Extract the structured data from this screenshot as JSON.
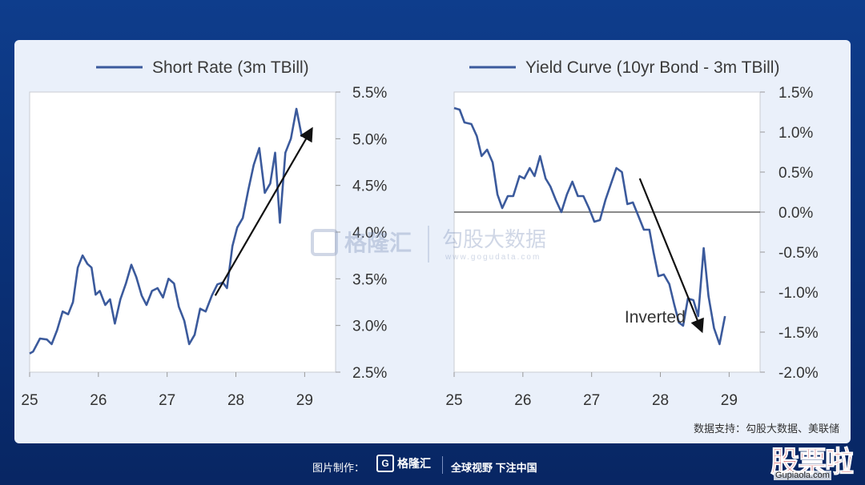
{
  "source_note": "数据支持：勾股大数据、美联储",
  "watermark": {
    "left": "格隆汇",
    "right": "勾股大数据",
    "right_url": "www.gogudata.com"
  },
  "footer": {
    "made_by": "图片制作：",
    "brand": "格隆汇",
    "slogan": "全球视野 下注中国"
  },
  "corner": {
    "big": "股票啦",
    "url": "Gupiaola.com"
  },
  "colors": {
    "series": "#3b5a9c",
    "background": "#0b2f76",
    "panel": "#eaf0fa"
  },
  "chart_data": [
    {
      "type": "line",
      "title": "",
      "xlabel": "",
      "ylabel": "",
      "ylim": [
        2.5,
        5.5
      ],
      "xlim": [
        25,
        29.45
      ],
      "x_ticks": [
        "25",
        "26",
        "27",
        "28",
        "29"
      ],
      "y_ticks": [
        "5.5%",
        "5.0%",
        "4.5%",
        "4.0%",
        "3.5%",
        "3.0%",
        "2.5%"
      ],
      "legend": "top-left",
      "series": [
        {
          "name": "Short Rate (3m TBill)",
          "values": [
            [
              25.0,
              2.7
            ],
            [
              25.05,
              2.72
            ],
            [
              25.15,
              2.86
            ],
            [
              25.25,
              2.85
            ],
            [
              25.32,
              2.8
            ],
            [
              25.4,
              2.95
            ],
            [
              25.48,
              3.15
            ],
            [
              25.56,
              3.12
            ],
            [
              25.63,
              3.25
            ],
            [
              25.7,
              3.62
            ],
            [
              25.77,
              3.75
            ],
            [
              25.84,
              3.66
            ],
            [
              25.9,
              3.62
            ],
            [
              25.96,
              3.33
            ],
            [
              26.02,
              3.37
            ],
            [
              26.1,
              3.22
            ],
            [
              26.17,
              3.28
            ],
            [
              26.24,
              3.02
            ],
            [
              26.32,
              3.28
            ],
            [
              26.4,
              3.45
            ],
            [
              26.48,
              3.65
            ],
            [
              26.55,
              3.52
            ],
            [
              26.63,
              3.32
            ],
            [
              26.7,
              3.22
            ],
            [
              26.78,
              3.37
            ],
            [
              26.86,
              3.4
            ],
            [
              26.94,
              3.3
            ],
            [
              27.02,
              3.5
            ],
            [
              27.1,
              3.45
            ],
            [
              27.17,
              3.2
            ],
            [
              27.25,
              3.05
            ],
            [
              27.32,
              2.8
            ],
            [
              27.4,
              2.9
            ],
            [
              27.48,
              3.18
            ],
            [
              27.56,
              3.15
            ],
            [
              27.65,
              3.32
            ],
            [
              27.73,
              3.44
            ],
            [
              27.81,
              3.46
            ],
            [
              27.87,
              3.4
            ],
            [
              27.95,
              3.85
            ],
            [
              28.02,
              4.05
            ],
            [
              28.1,
              4.15
            ],
            [
              28.18,
              4.45
            ],
            [
              28.26,
              4.72
            ],
            [
              28.34,
              4.9
            ],
            [
              28.42,
              4.42
            ],
            [
              28.5,
              4.52
            ],
            [
              28.57,
              4.85
            ],
            [
              28.64,
              4.1
            ],
            [
              28.72,
              4.85
            ],
            [
              28.8,
              5.0
            ],
            [
              28.88,
              5.32
            ],
            [
              28.96,
              5.02
            ]
          ]
        }
      ],
      "annotations": [
        {
          "type": "arrow",
          "from": [
            27.7,
            3.32
          ],
          "to": [
            29.1,
            5.1
          ]
        }
      ]
    },
    {
      "type": "line",
      "title": "",
      "xlabel": "",
      "ylabel": "",
      "ylim": [
        -2.0,
        1.5
      ],
      "xlim": [
        25,
        29.45
      ],
      "x_ticks": [
        "25",
        "26",
        "27",
        "28",
        "29"
      ],
      "y_ticks": [
        "1.5%",
        "1.0%",
        "0.5%",
        "0.0%",
        "-0.5%",
        "-1.0%",
        "-1.5%",
        "-2.0%"
      ],
      "legend": "top-left",
      "zero_line": true,
      "series": [
        {
          "name": "Yield Curve (10yr Bond - 3m TBill)",
          "values": [
            [
              25.0,
              1.3
            ],
            [
              25.08,
              1.28
            ],
            [
              25.15,
              1.12
            ],
            [
              25.25,
              1.1
            ],
            [
              25.33,
              0.95
            ],
            [
              25.4,
              0.7
            ],
            [
              25.48,
              0.78
            ],
            [
              25.56,
              0.62
            ],
            [
              25.63,
              0.22
            ],
            [
              25.7,
              0.05
            ],
            [
              25.78,
              0.2
            ],
            [
              25.86,
              0.2
            ],
            [
              25.95,
              0.45
            ],
            [
              26.02,
              0.42
            ],
            [
              26.1,
              0.55
            ],
            [
              26.17,
              0.45
            ],
            [
              26.25,
              0.7
            ],
            [
              26.33,
              0.42
            ],
            [
              26.4,
              0.32
            ],
            [
              26.48,
              0.15
            ],
            [
              26.56,
              0.0
            ],
            [
              26.64,
              0.22
            ],
            [
              26.72,
              0.38
            ],
            [
              26.8,
              0.2
            ],
            [
              26.88,
              0.2
            ],
            [
              26.96,
              0.05
            ],
            [
              27.04,
              -0.12
            ],
            [
              27.12,
              -0.1
            ],
            [
              27.2,
              0.15
            ],
            [
              27.28,
              0.35
            ],
            [
              27.36,
              0.55
            ],
            [
              27.44,
              0.5
            ],
            [
              27.52,
              0.1
            ],
            [
              27.6,
              0.12
            ],
            [
              27.68,
              -0.05
            ],
            [
              27.76,
              -0.22
            ],
            [
              27.84,
              -0.22
            ],
            [
              27.9,
              -0.5
            ],
            [
              27.97,
              -0.8
            ],
            [
              28.05,
              -0.78
            ],
            [
              28.13,
              -0.9
            ],
            [
              28.2,
              -1.15
            ],
            [
              28.27,
              -1.38
            ],
            [
              28.33,
              -1.42
            ],
            [
              28.4,
              -1.08
            ],
            [
              28.48,
              -1.1
            ],
            [
              28.55,
              -1.3
            ],
            [
              28.63,
              -0.45
            ],
            [
              28.7,
              -1.05
            ],
            [
              28.78,
              -1.45
            ],
            [
              28.86,
              -1.65
            ],
            [
              28.94,
              -1.3
            ]
          ]
        }
      ],
      "annotations": [
        {
          "type": "arrow",
          "from": [
            27.7,
            0.42
          ],
          "to": [
            28.6,
            -1.48
          ]
        },
        {
          "type": "text",
          "text": "Inverted",
          "at": [
            27.48,
            -1.38
          ]
        }
      ]
    }
  ]
}
